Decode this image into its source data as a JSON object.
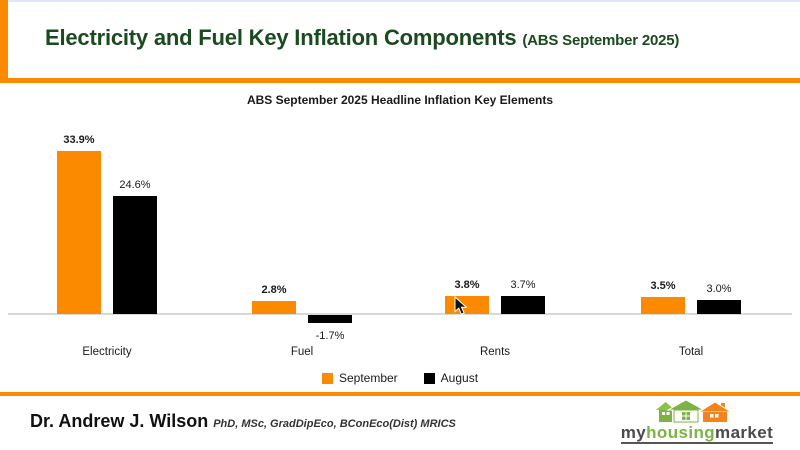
{
  "header": {
    "title": "Electricity and Fuel Key Inflation Components",
    "subtitle": "(ABS September 2025)"
  },
  "chart_data": {
    "type": "bar",
    "title": "ABS September 2025 Headline Inflation Key Elements",
    "categories": [
      "Electricity",
      "Fuel",
      "Rents",
      "Total"
    ],
    "series": [
      {
        "name": "September",
        "color": "#FC8A00",
        "values": [
          33.9,
          2.8,
          3.8,
          3.5
        ],
        "labels": [
          "33.9%",
          "2.8%",
          "3.8%",
          "3.5%"
        ]
      },
      {
        "name": "August",
        "color": "#000000",
        "values": [
          24.6,
          -1.7,
          3.7,
          3.0
        ],
        "labels": [
          "24.6%",
          "-1.7%",
          "3.7%",
          "3.0%"
        ]
      }
    ],
    "xlabel": "",
    "ylabel": "",
    "ylim": [
      -5,
      36
    ],
    "grid": false,
    "legend_position": "bottom",
    "value_labels_shown": true
  },
  "footer": {
    "author": "Dr. Andrew J. Wilson",
    "credentials": "PhD, MSc, GradDipEco, BConEco(Dist) MRICS"
  },
  "logo": {
    "part1": "my",
    "part2": "housing",
    "part3": "market"
  },
  "colors": {
    "accent_orange": "#FC8A00",
    "title_green": "#1B4A1F",
    "baseline_gray": "#D9D9D9",
    "top_edge_blue": "#DCE8F5",
    "logo_green": "#7CB342",
    "logo_orange": "#F4831B",
    "logo_text_dark": "#4A4A4A"
  }
}
